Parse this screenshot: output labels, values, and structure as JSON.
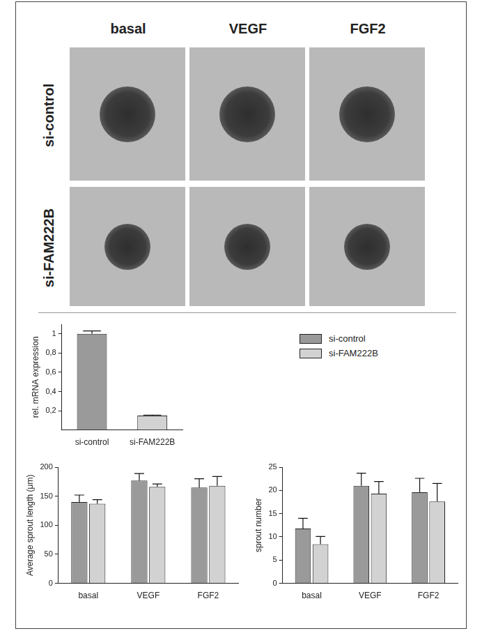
{
  "image_grid": {
    "columns": [
      "basal",
      "VEGF",
      "FGF2"
    ],
    "rows": [
      "si-control",
      "si-FAM222B"
    ]
  },
  "chart_data": [
    {
      "type": "bar",
      "y_label": "rel. mRNA expression",
      "categories": [
        "si-control",
        "si-FAM222B"
      ],
      "values": [
        1.0,
        0.15
      ],
      "errors": [
        0.03,
        0.005
      ],
      "colors": [
        "#9a9a9a",
        "#d2d2d2"
      ],
      "ylim": [
        0,
        1.1
      ],
      "yticks": [
        {
          "value": 0.2,
          "label": "0,2"
        },
        {
          "value": 0.4,
          "label": "0,4"
        },
        {
          "value": 0.6,
          "label": "0,6"
        },
        {
          "value": 0.8,
          "label": "0,8"
        },
        1
      ],
      "grid": false,
      "legend": "right"
    },
    {
      "type": "bar",
      "y_label": "Average sprout length (μm)",
      "categories": [
        "basal",
        "VEGF",
        "FGF2"
      ],
      "series": [
        {
          "name": "si-control",
          "color": "#9a9a9a",
          "values": [
            140,
            177,
            165
          ],
          "errors": [
            12,
            12,
            15
          ]
        },
        {
          "name": "si-FAM222B",
          "color": "#d2d2d2",
          "values": [
            137,
            166,
            168
          ],
          "errors": [
            7,
            5,
            16
          ]
        }
      ],
      "ylim": [
        0,
        200
      ],
      "yticks": [
        0,
        50,
        100,
        150,
        200
      ],
      "grid": false
    },
    {
      "type": "bar",
      "y_label": "sprout number",
      "categories": [
        "basal",
        "VEGF",
        "FGF2"
      ],
      "series": [
        {
          "name": "si-control",
          "color": "#9a9a9a",
          "values": [
            11.8,
            21,
            19.6
          ],
          "errors": [
            2.2,
            2.7,
            3
          ]
        },
        {
          "name": "si-FAM222B",
          "color": "#d2d2d2",
          "values": [
            8.4,
            19.3,
            17.6
          ],
          "errors": [
            1.7,
            2.6,
            3.9
          ]
        }
      ],
      "ylim": [
        0,
        25
      ],
      "yticks": [
        0,
        5,
        10,
        15,
        20,
        25
      ],
      "grid": false
    }
  ]
}
